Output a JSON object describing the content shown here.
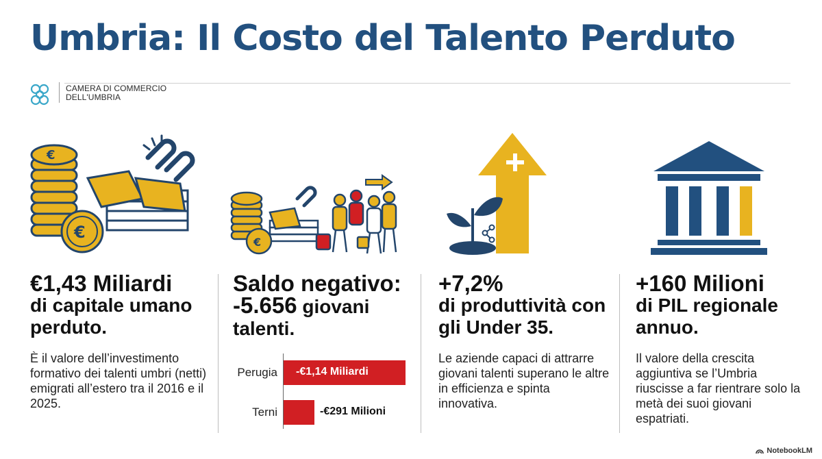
{
  "title": "Umbria: Il Costo del Talento Perduto",
  "org": {
    "line1": "CAMERA DI COMMERCIO",
    "line2": "DELL'UMBRIA"
  },
  "columns": [
    {
      "big": "€1,43 Miliardi",
      "label": "di capitale umano perduto.",
      "desc": "È il valore dell’investimento formativo dei talenti umbri (netti) emigrati all’estero tra il 2016 e il 2025."
    },
    {
      "big_pre": "Saldo negativo:",
      "big": "-5.656",
      "label": "giovani talenti."
    },
    {
      "big": "+7,2%",
      "label": "di produttività con gli Under 35.",
      "desc": "Le aziende capaci di attrarre giovani talenti superano le altre in efficienza e spinta innovativa."
    },
    {
      "big": "+160 Milioni",
      "label": "di PIL regionale annuo.",
      "desc": "Il valore della crescita aggiuntiva se l’Umbria riuscisse a far rientrare solo la metà dei suoi giovani espatriati."
    }
  ],
  "chart_data": {
    "type": "bar",
    "orientation": "horizontal",
    "categories": [
      "Perugia",
      "Terni"
    ],
    "values": [
      1140,
      291
    ],
    "unit": "milioni di euro",
    "data_labels": [
      "-€1,14 Miliardi",
      "-€291 Milioni"
    ],
    "bar_color": "#d11f23",
    "grid": false
  },
  "colors": {
    "title": "#22507f",
    "gold": "#e8b320",
    "navy": "#23456b",
    "red": "#d11f23"
  },
  "icons": [
    "coins-icon",
    "broken-chain-icon",
    "migrating-people-icon",
    "growth-arrow-icon",
    "plant-icon",
    "bank-icon"
  ],
  "footer": "NotebookLM"
}
